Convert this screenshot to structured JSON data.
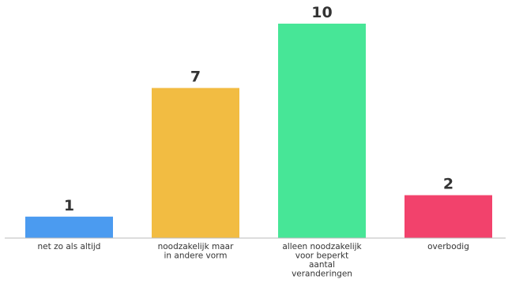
{
  "chart_data": {
    "type": "bar",
    "title": "",
    "xlabel": "",
    "ylabel": "",
    "ylim": [
      0,
      10
    ],
    "grid": false,
    "legend": "none",
    "categories": [
      [
        "net zo als altijd"
      ],
      [
        "noodzakelijk maar",
        "in andere vorm"
      ],
      [
        "alleen noodzakelijk",
        "voor beperkt",
        "aantal",
        "veranderingen"
      ],
      [
        "overbodig"
      ]
    ],
    "values": [
      1,
      7,
      10,
      2
    ],
    "colors": [
      "#4b9bf0",
      "#f2bc42",
      "#47e697",
      "#f2426c"
    ]
  }
}
